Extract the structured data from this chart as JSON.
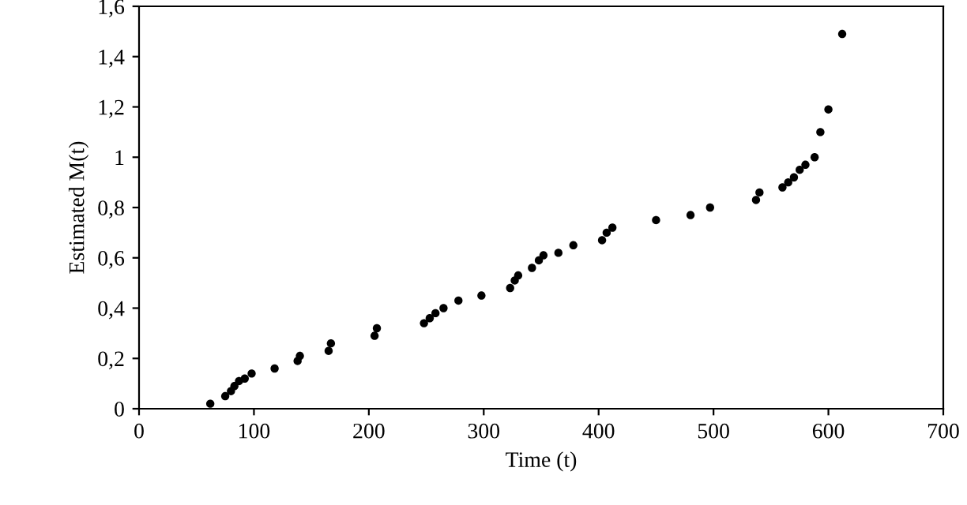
{
  "chart_data": {
    "type": "scatter",
    "xlabel": "Time (t)",
    "ylabel": "Estimated M(t)",
    "x": [
      62,
      75,
      80,
      83,
      87,
      92,
      98,
      118,
      138,
      140,
      165,
      167,
      205,
      207,
      248,
      253,
      258,
      265,
      278,
      298,
      323,
      327,
      330,
      342,
      348,
      352,
      365,
      378,
      403,
      407,
      412,
      450,
      480,
      497,
      537,
      540,
      560,
      565,
      570,
      575,
      580,
      588,
      593,
      600,
      612
    ],
    "values": [
      0.02,
      0.05,
      0.07,
      0.09,
      0.11,
      0.12,
      0.14,
      0.16,
      0.19,
      0.21,
      0.23,
      0.26,
      0.29,
      0.32,
      0.34,
      0.36,
      0.38,
      0.4,
      0.43,
      0.45,
      0.48,
      0.51,
      0.53,
      0.56,
      0.59,
      0.61,
      0.62,
      0.65,
      0.67,
      0.7,
      0.72,
      0.75,
      0.77,
      0.8,
      0.83,
      0.86,
      0.88,
      0.9,
      0.92,
      0.95,
      0.97,
      1.0,
      1.1,
      1.19,
      1.49
    ],
    "color": "#000000",
    "marker": "circle",
    "xlim": [
      0,
      700
    ],
    "xticks": [
      0,
      100,
      200,
      300,
      400,
      500,
      600,
      700
    ],
    "ylim": [
      0,
      1.6
    ],
    "yticks": [
      {
        "value": 0,
        "label": "0"
      },
      {
        "value": 0.2,
        "label": "0,2"
      },
      {
        "value": 0.4,
        "label": "0,4"
      },
      {
        "value": 0.6,
        "label": "0,6"
      },
      {
        "value": 0.8,
        "label": "0,8"
      },
      {
        "value": 1,
        "label": "1"
      },
      {
        "value": 1.2,
        "label": "1,2"
      },
      {
        "value": 1.4,
        "label": "1,4"
      },
      {
        "value": 1.6,
        "label": "1,6"
      }
    ],
    "grid": false,
    "legend": false
  }
}
